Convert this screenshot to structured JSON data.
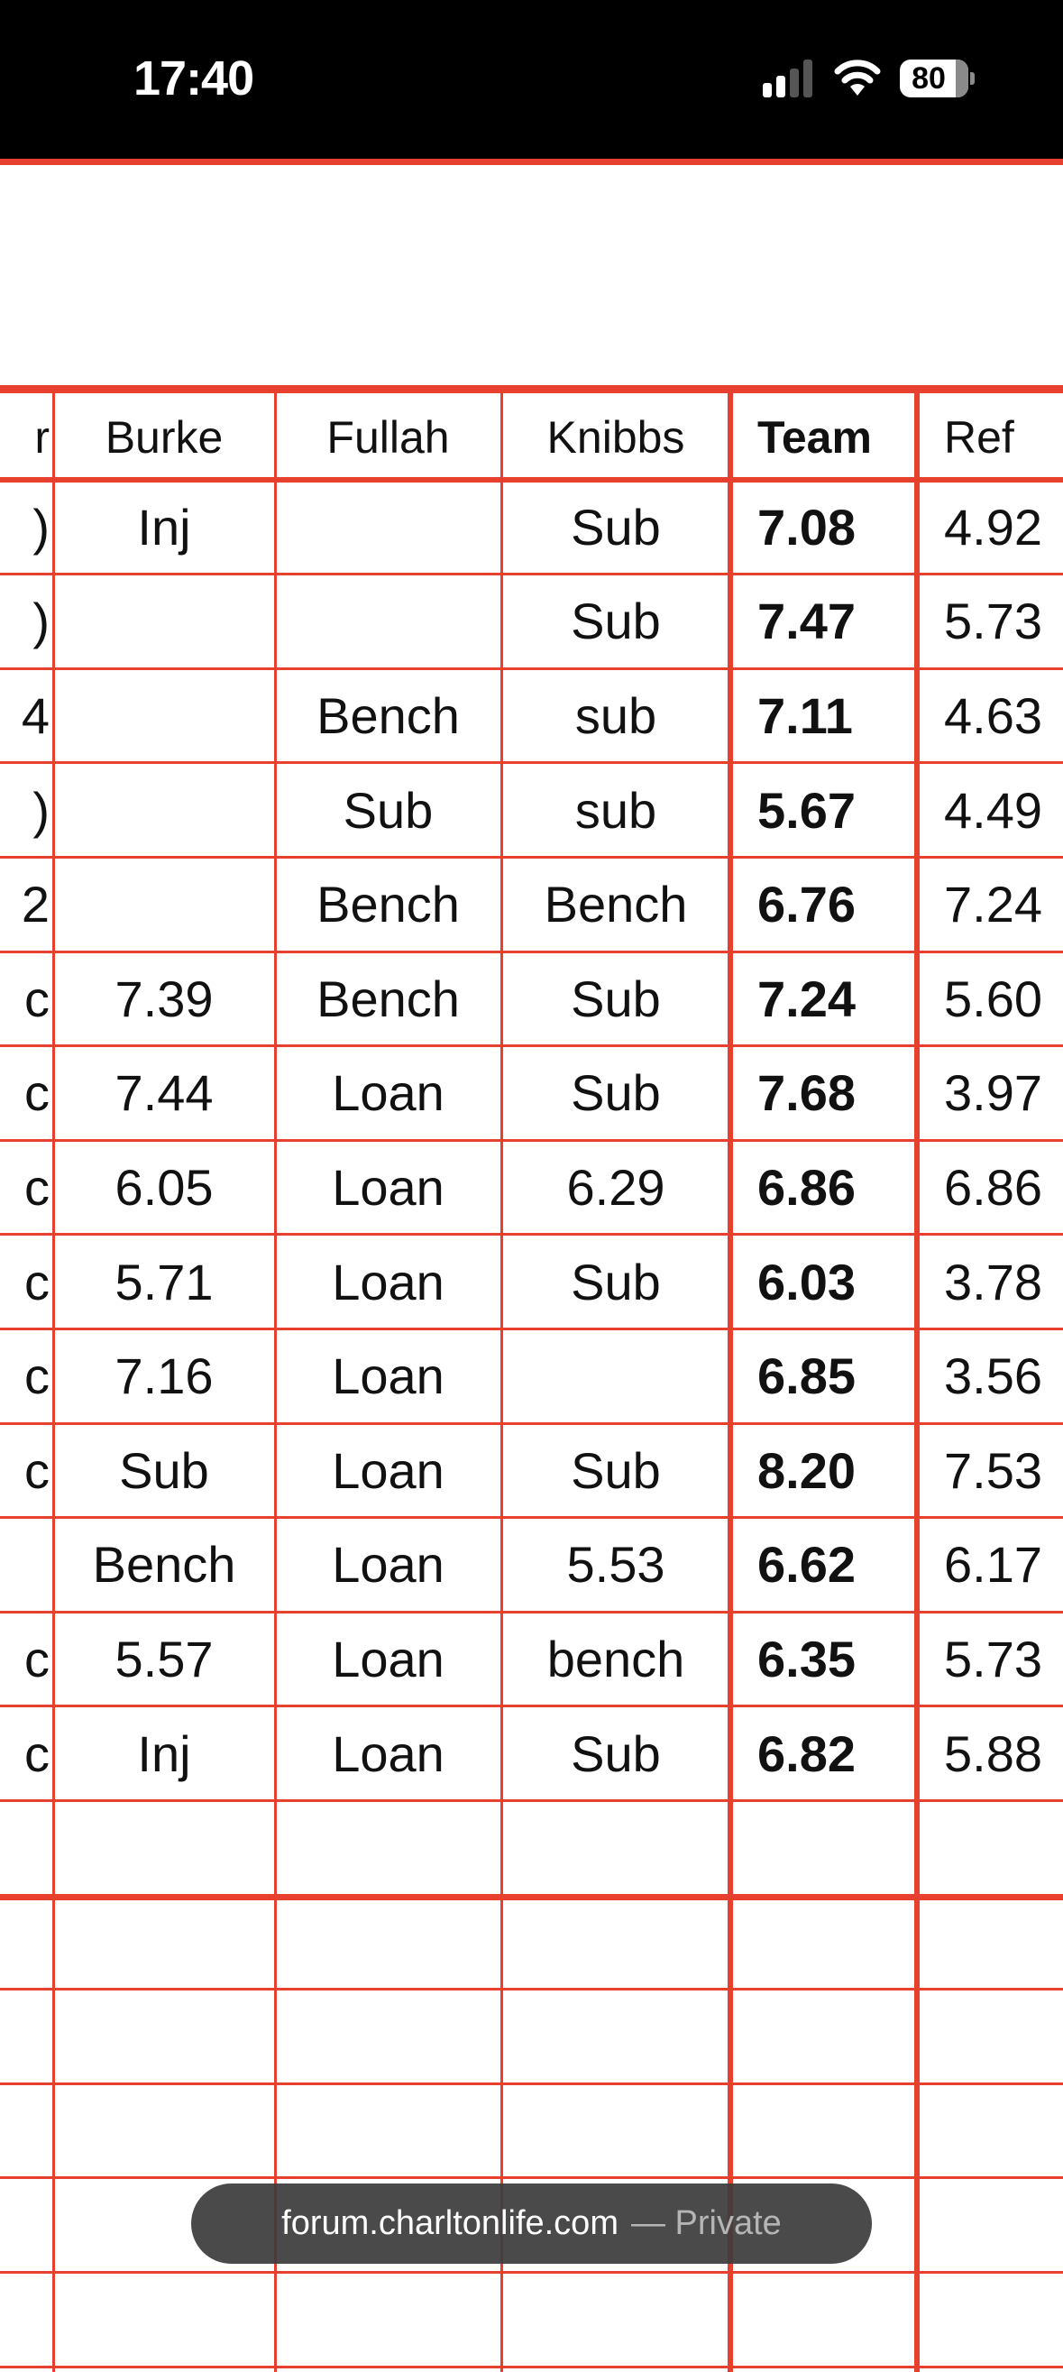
{
  "status_bar": {
    "time": "17:40",
    "battery_level": "80",
    "signal_bars_active": 2,
    "icons": [
      "cellular-signal-icon",
      "wifi-icon",
      "battery-icon"
    ]
  },
  "colors": {
    "grid": "#e8402f",
    "status_bg": "#000000",
    "pill_bg": "#3c3c3c"
  },
  "table": {
    "headers": [
      "r",
      "Burke",
      "Fullah",
      "Knibbs",
      "Team",
      "Ref"
    ],
    "rows": [
      [
        ")",
        "Inj",
        "",
        "Sub",
        "7.08",
        "4.92"
      ],
      [
        ")",
        "",
        "",
        "Sub",
        "7.47",
        "5.73"
      ],
      [
        "4",
        "",
        "Bench",
        "sub",
        "7.11",
        "4.63"
      ],
      [
        ")",
        "",
        "Sub",
        "sub",
        "5.67",
        "4.49"
      ],
      [
        "2",
        "",
        "Bench",
        "Bench",
        "6.76",
        "7.24"
      ],
      [
        "c",
        "7.39",
        "Bench",
        "Sub",
        "7.24",
        "5.60"
      ],
      [
        "c",
        "7.44",
        "Loan",
        "Sub",
        "7.68",
        "3.97"
      ],
      [
        "c",
        "6.05",
        "Loan",
        "6.29",
        "6.86",
        "6.86"
      ],
      [
        "c",
        "5.71",
        "Loan",
        "Sub",
        "6.03",
        "3.78"
      ],
      [
        "c",
        "7.16",
        "Loan",
        "",
        "6.85",
        "3.56"
      ],
      [
        "c",
        "Sub",
        "Loan",
        "Sub",
        "8.20",
        "7.53"
      ],
      [
        "",
        "Bench",
        "Loan",
        "5.53",
        "6.62",
        "6.17"
      ],
      [
        "c",
        "5.57",
        "Loan",
        "bench",
        "6.35",
        "5.73"
      ],
      [
        "c",
        "Inj",
        "Loan",
        "Sub",
        "6.82",
        "5.88"
      ],
      [
        "",
        "",
        "",
        "",
        "",
        ""
      ],
      [
        "",
        "",
        "",
        "",
        "",
        ""
      ],
      [
        "",
        "",
        "",
        "",
        "",
        ""
      ],
      [
        "",
        "",
        "",
        "",
        "",
        ""
      ],
      [
        "",
        "",
        "",
        "",
        "",
        ""
      ],
      [
        "",
        "",
        "",
        "",
        "",
        ""
      ]
    ]
  },
  "address_pill": {
    "domain": "forum.charltonlife.com",
    "mode": "— Private"
  }
}
